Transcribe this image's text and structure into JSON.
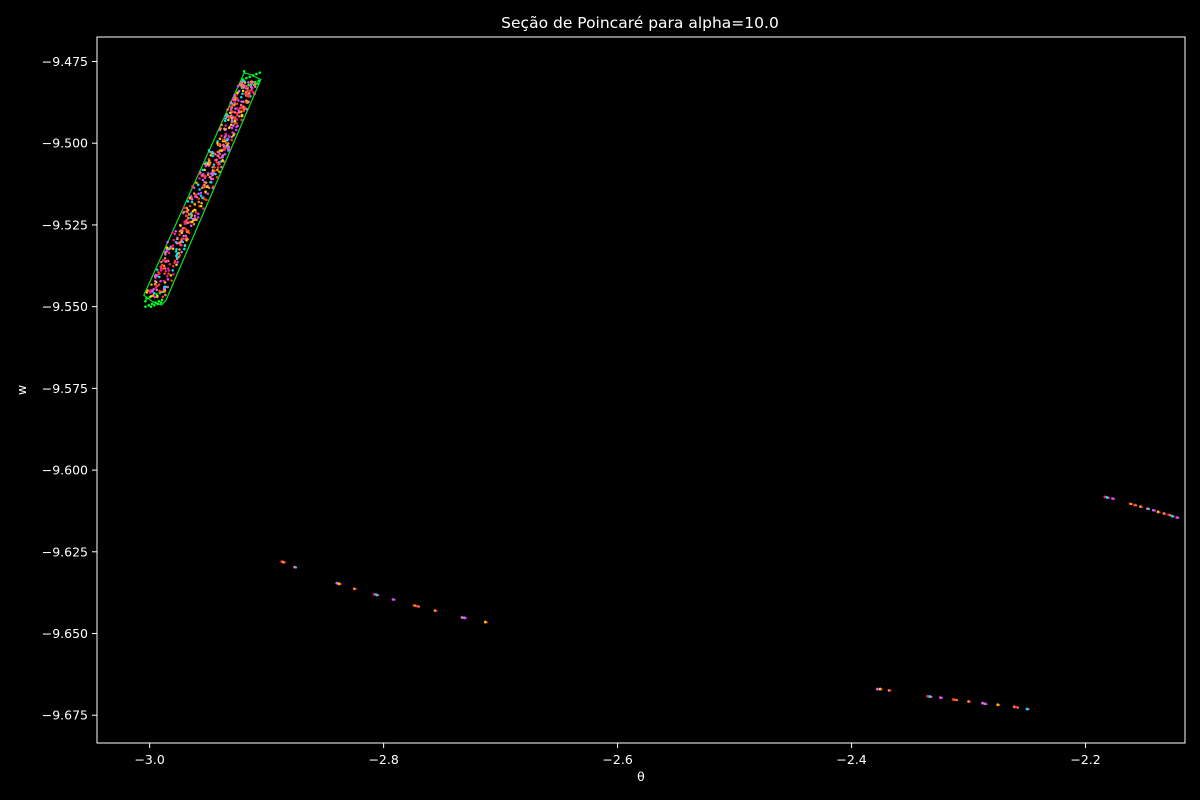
{
  "chart_data": {
    "type": "scatter",
    "title": "Seção de Poincaré para alpha=10.0",
    "xlabel": "θ",
    "ylabel": "w",
    "xlim": [
      -3.045,
      -2.115
    ],
    "ylim": [
      -9.6835,
      -9.4675
    ],
    "xticks": [
      -3.0,
      -2.8,
      -2.6,
      -2.4,
      -2.2
    ],
    "xtick_labels": [
      "−3.0",
      "−2.8",
      "−2.6",
      "−2.4",
      "−2.2"
    ],
    "yticks": [
      -9.475,
      -9.5,
      -9.525,
      -9.55,
      -9.575,
      -9.6,
      -9.625,
      -9.65,
      -9.675
    ],
    "ytick_labels": [
      "−9.475",
      "−9.500",
      "−9.525",
      "−9.550",
      "−9.575",
      "−9.600",
      "−9.625",
      "−9.650",
      "−9.675"
    ],
    "grid": false,
    "background": "#000000",
    "foreground": "#ffffff",
    "palette": [
      "#ff3b3b",
      "#ffa500",
      "#ff69b4",
      "#cc66ff",
      "#ffd700",
      "#ff7f50",
      "#ff1493",
      "#00e5ff",
      "#e040fb",
      "#ff4500"
    ],
    "band_color": "#00ff22",
    "island_band": {
      "start": [
        -2.9955,
        -9.5465
      ],
      "end": [
        -2.9135,
        -9.4805
      ],
      "half_width_x": 0.0095,
      "halo_color": "#00ff22"
    },
    "chains": [
      {
        "points": [
          [
            -2.887,
            -9.628
          ],
          [
            -2.8855,
            -9.6282
          ],
          [
            -2.876,
            -9.6297
          ],
          [
            -2.84,
            -9.6346
          ],
          [
            -2.838,
            -9.6348
          ],
          [
            -2.825,
            -9.6363
          ],
          [
            -2.808,
            -9.638
          ],
          [
            -2.806,
            -9.6382
          ],
          [
            -2.792,
            -9.6396
          ],
          [
            -2.774,
            -9.6414
          ],
          [
            -2.771,
            -9.6417
          ],
          [
            -2.756,
            -9.643
          ],
          [
            -2.733,
            -9.6451
          ],
          [
            -2.731,
            -9.6452
          ],
          [
            -2.713,
            -9.6465
          ]
        ]
      },
      {
        "points": [
          [
            -2.378,
            -9.667
          ],
          [
            -2.3755,
            -9.667
          ],
          [
            -2.368,
            -9.6674
          ],
          [
            -2.335,
            -9.6692
          ],
          [
            -2.333,
            -9.6693
          ],
          [
            -2.324,
            -9.6696
          ],
          [
            -2.313,
            -9.6702
          ],
          [
            -2.311,
            -9.6703
          ],
          [
            -2.3,
            -9.6708
          ],
          [
            -2.288,
            -9.6713
          ],
          [
            -2.286,
            -9.6715
          ],
          [
            -2.275,
            -9.6718
          ],
          [
            -2.261,
            -9.6724
          ],
          [
            -2.259,
            -9.6726
          ],
          [
            -2.25,
            -9.6731
          ]
        ]
      },
      {
        "points": [
          [
            -2.1835,
            -9.6082
          ],
          [
            -2.1815,
            -9.6084
          ],
          [
            -2.177,
            -9.6087
          ],
          [
            -2.162,
            -9.6103
          ],
          [
            -2.158,
            -9.6107
          ],
          [
            -2.153,
            -9.6112
          ],
          [
            -2.147,
            -9.6118
          ],
          [
            -2.142,
            -9.6123
          ],
          [
            -2.138,
            -9.6128
          ],
          [
            -2.133,
            -9.6133
          ],
          [
            -2.129,
            -9.6137
          ],
          [
            -2.126,
            -9.6141
          ],
          [
            -2.122,
            -9.6145
          ]
        ]
      }
    ]
  }
}
